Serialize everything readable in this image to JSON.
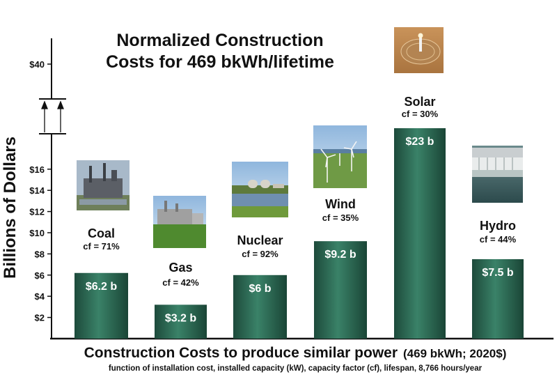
{
  "chart_data": {
    "type": "bar",
    "title_line1": "Normalized Construction",
    "title_line2": "Costs for 469 bkWh/lifetime",
    "ylabel": "Billions of Dollars",
    "xlabel": "Construction Costs to produce similar power",
    "xlabel_suffix": "(469 bkWh; 2020$)",
    "xlabel_sub": "function of installation cost, installed capacity (kW), capacity factor (cf), lifespan, 8,766 hours/year",
    "yticks": [
      {
        "value": 2,
        "label": "$2"
      },
      {
        "value": 4,
        "label": "$4"
      },
      {
        "value": 6,
        "label": "$6"
      },
      {
        "value": 8,
        "label": "$8"
      },
      {
        "value": 10,
        "label": "$10"
      },
      {
        "value": 12,
        "label": "$12"
      },
      {
        "value": 14,
        "label": "$14"
      },
      {
        "value": 16,
        "label": "$16"
      },
      {
        "value": 40,
        "label": "$40"
      }
    ],
    "axis_break": true,
    "categories": [
      "Coal",
      "Gas",
      "Nuclear",
      "Wind",
      "Solar",
      "Hydro"
    ],
    "values": [
      6.2,
      3.2,
      6,
      9.2,
      23,
      7.5
    ],
    "value_labels": [
      "$6.2 b",
      "$3.2 b",
      "$6 b",
      "$9.2 b",
      "$23 b",
      "$7.5 b"
    ],
    "capacity_factors": [
      "cf = 71%",
      "cf = 42%",
      "cf = 92%",
      "cf = 35%",
      "cf = 30%",
      "cf = 44%"
    ],
    "bar_color": "#2e6b55"
  },
  "photos": [
    "coal-plant-photo",
    "gas-plant-photo",
    "nuclear-plant-photo",
    "wind-farm-photo",
    "solar-tower-photo",
    "hydro-dam-photo"
  ]
}
